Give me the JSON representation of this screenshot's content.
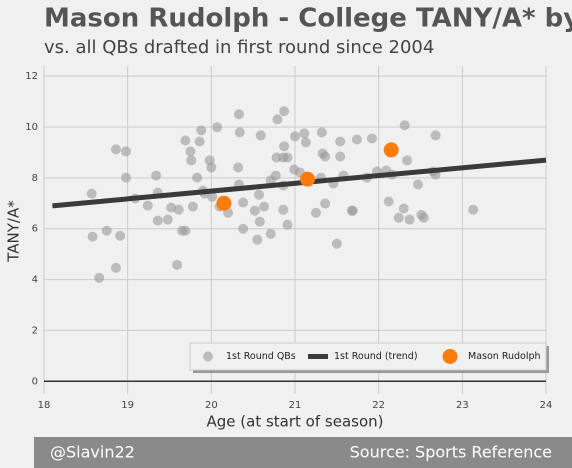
{
  "chart_data": {
    "type": "scatter",
    "title": "Mason Rudolph - College TANY/A* by Age",
    "subtitle": "vs. all QBs drafted in first round since 2004",
    "x_label": "Age (at start of season)",
    "y_label": "TANY/A*",
    "credit": "@Slavin22",
    "source": "Source: Sports Reference",
    "xlim": [
      18,
      24
    ],
    "ylim": [
      -0.5,
      12.4
    ],
    "xticks": [
      18,
      19,
      20,
      21,
      22,
      23,
      24
    ],
    "yticks": [
      0,
      2,
      4,
      6,
      8,
      10,
      12
    ],
    "grid": true,
    "legend": "lower right",
    "series": [
      {
        "name": "1st Round QBs",
        "type": "scatter",
        "color": "#9a9a9a",
        "x": [
          18.57,
          18.58,
          18.66,
          18.75,
          18.86,
          18.86,
          18.91,
          18.98,
          18.98,
          19.09,
          19.24,
          19.34,
          19.36,
          19.36,
          19.48,
          19.52,
          19.59,
          19.61,
          19.65,
          19.69,
          19.69,
          19.75,
          19.76,
          19.78,
          19.83,
          19.86,
          19.88,
          19.9,
          19.92,
          19.98,
          20.01,
          20.0,
          20.07,
          20.1,
          20.2,
          20.32,
          20.33,
          20.34,
          20.33,
          20.38,
          20.38,
          20.52,
          20.55,
          20.57,
          20.58,
          20.59,
          20.63,
          20.71,
          20.71,
          20.77,
          20.78,
          20.79,
          20.86,
          20.86,
          20.86,
          20.87,
          20.91,
          20.87,
          20.91,
          20.99,
          21.0,
          21.06,
          21.11,
          21.13,
          21.25,
          21.31,
          21.32,
          21.33,
          21.36,
          21.36,
          21.46,
          21.5,
          21.54,
          21.54,
          21.58,
          21.68,
          21.69,
          21.74,
          21.86,
          21.92,
          21.98,
          22.09,
          22.12,
          22.16,
          22.24,
          22.3,
          22.31,
          22.34,
          22.37,
          22.47,
          22.51,
          22.54,
          22.65,
          22.68,
          22.68,
          23.13
        ],
        "values": [
          7.38,
          5.69,
          4.07,
          5.92,
          4.46,
          9.12,
          5.72,
          9.04,
          8.01,
          7.19,
          6.91,
          8.09,
          6.32,
          7.42,
          6.36,
          6.83,
          4.58,
          6.75,
          5.92,
          5.92,
          9.47,
          9.04,
          8.69,
          6.87,
          8.01,
          9.43,
          9.87,
          7.5,
          7.38,
          8.69,
          7.26,
          8.41,
          9.99,
          6.87,
          6.63,
          8.41,
          10.5,
          9.79,
          7.74,
          6.0,
          7.03,
          6.71,
          5.57,
          7.34,
          6.28,
          9.67,
          6.87,
          7.9,
          5.8,
          8.09,
          8.8,
          10.3,
          7.7,
          8.8,
          6.75,
          9.24,
          6.16,
          10.62,
          8.8,
          8.33,
          9.63,
          8.21,
          9.75,
          9.4,
          6.63,
          8.01,
          9.79,
          8.96,
          8.84,
          6.99,
          7.78,
          5.41,
          9.43,
          8.84,
          8.09,
          6.71,
          6.71,
          9.51,
          8.01,
          9.55,
          8.25,
          8.29,
          7.07,
          8.13,
          6.43,
          6.79,
          10.07,
          8.69,
          6.36,
          7.74,
          6.55,
          6.43,
          8.25,
          8.13,
          9.67,
          6.75
        ]
      },
      {
        "name": "1st Round (trend)",
        "type": "line",
        "color": "#3a3a3a",
        "x": [
          18.1,
          24
        ],
        "values": [
          6.9,
          8.7
        ]
      },
      {
        "name": "Mason Rudolph",
        "type": "scatter",
        "color": "#fc7b0c",
        "x": [
          20.15,
          21.15,
          22.15
        ],
        "values": [
          7.0,
          7.95,
          9.1
        ]
      }
    ]
  }
}
